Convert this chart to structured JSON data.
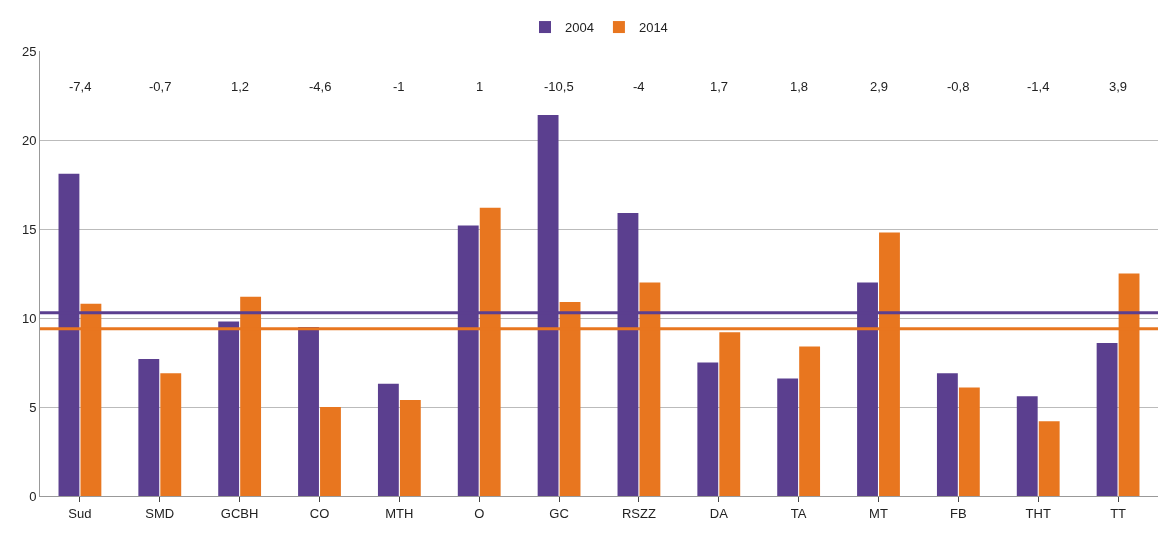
{
  "chart_data": {
    "type": "bar",
    "categories": [
      "Sud",
      "SMD",
      "GCBH",
      "CO",
      "MTH",
      "O",
      "GC",
      "RSZZ",
      "DA",
      "TA",
      "MT",
      "FB",
      "THT",
      "TT"
    ],
    "series": [
      {
        "name": "2004",
        "color": "#5b3f8f",
        "values": [
          18.1,
          7.7,
          9.8,
          9.5,
          6.3,
          15.2,
          21.4,
          15.9,
          7.5,
          6.6,
          12.0,
          6.9,
          5.6,
          8.6
        ]
      },
      {
        "name": "2014",
        "color": "#e8761f",
        "values": [
          10.8,
          6.9,
          11.2,
          5.0,
          5.4,
          16.2,
          10.9,
          12.0,
          9.2,
          8.4,
          14.8,
          6.1,
          4.2,
          12.5
        ]
      }
    ],
    "ylim": [
      0,
      25
    ],
    "yticks": [
      0,
      5,
      10,
      15,
      20,
      25
    ],
    "grid": "y",
    "legend": "top",
    "ref_lines": [
      {
        "axis": "y",
        "value": 10.3,
        "color": "#5b3f8f"
      },
      {
        "axis": "y",
        "value": 9.4,
        "color": "#e8761f"
      }
    ],
    "annotations": [
      "-7,4",
      "-0,7",
      "1,2",
      "-4,6",
      "-1",
      "1",
      "-10,5",
      "-4",
      "1,7",
      "1,8",
      "2,9",
      "-0,8",
      "-1,4",
      "3,9"
    ]
  }
}
